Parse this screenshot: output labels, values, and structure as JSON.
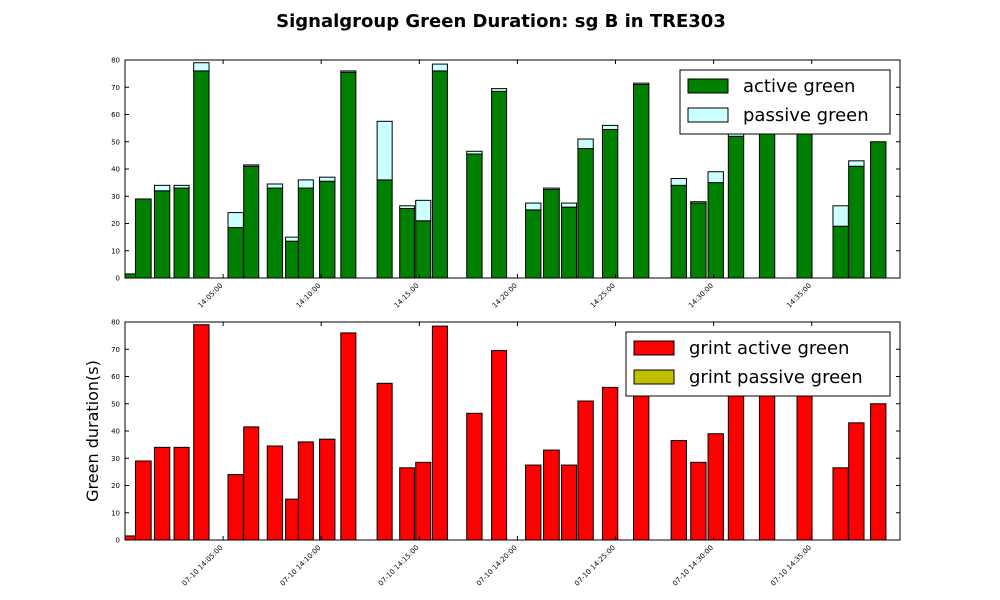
{
  "figure_title": "Signalgroup Green Duration: sg B in TRE303",
  "chart_data": [
    {
      "type": "bar",
      "stacked": true,
      "title": "",
      "xlabel": "",
      "ylabel": "",
      "ylim": [
        0,
        80
      ],
      "yticks": [
        0,
        10,
        20,
        30,
        40,
        50,
        60,
        70,
        80
      ],
      "xlim": [
        "14:00:00",
        "14:39:30"
      ],
      "xtick_values": [
        "14:05:00",
        "14:10:00",
        "14:15:00",
        "14:20:00",
        "14:25:00",
        "14:30:00",
        "14:35:00"
      ],
      "xtick_labels": [
        "14:05:00",
        "14:10:00",
        "14:15:00",
        "14:20:00",
        "14:25:00",
        "14:30:00",
        "14:35:00"
      ],
      "legend_position": "top-right",
      "grid": false,
      "bars": [
        {
          "start": "14:00:00",
          "end": "14:00:40",
          "active": 1.5,
          "passive": 0
        },
        {
          "start": "14:00:32",
          "end": "14:01:20",
          "active": 29,
          "passive": 0
        },
        {
          "start": "14:01:30",
          "end": "14:02:17",
          "active": 32,
          "passive": 2
        },
        {
          "start": "14:02:30",
          "end": "14:03:16",
          "active": 33,
          "passive": 1
        },
        {
          "start": "14:03:30",
          "end": "14:04:17",
          "active": 76,
          "passive": 3
        },
        {
          "start": "14:05:15",
          "end": "14:06:02",
          "active": 18.5,
          "passive": 5.5
        },
        {
          "start": "14:06:03",
          "end": "14:06:49",
          "active": 41,
          "passive": 0.5
        },
        {
          "start": "14:07:15",
          "end": "14:08:02",
          "active": 33,
          "passive": 1.5
        },
        {
          "start": "14:08:11",
          "end": "14:08:51",
          "active": 13.5,
          "passive": 1.5
        },
        {
          "start": "14:08:50",
          "end": "14:09:36",
          "active": 33,
          "passive": 3
        },
        {
          "start": "14:09:55",
          "end": "14:10:42",
          "active": 35.5,
          "passive": 1.5
        },
        {
          "start": "14:11:00",
          "end": "14:11:46",
          "active": 75.5,
          "passive": 0.5
        },
        {
          "start": "14:12:51",
          "end": "14:13:37",
          "active": 36,
          "passive": 21.5
        },
        {
          "start": "14:14:00",
          "end": "14:14:45",
          "active": 25.5,
          "passive": 1
        },
        {
          "start": "14:14:49",
          "end": "14:15:35",
          "active": 21,
          "passive": 7.5
        },
        {
          "start": "14:15:40",
          "end": "14:16:26",
          "active": 76,
          "passive": 2.5
        },
        {
          "start": "14:17:25",
          "end": "14:18:12",
          "active": 45.5,
          "passive": 1
        },
        {
          "start": "14:18:41",
          "end": "14:19:27",
          "active": 68.5,
          "passive": 1
        },
        {
          "start": "14:20:25",
          "end": "14:21:12",
          "active": 25,
          "passive": 2.5
        },
        {
          "start": "14:21:20",
          "end": "14:22:08",
          "active": 32.5,
          "passive": 0.5
        },
        {
          "start": "14:22:15",
          "end": "14:23:01",
          "active": 26,
          "passive": 1.5
        },
        {
          "start": "14:23:05",
          "end": "14:23:52",
          "active": 47.5,
          "passive": 3.5
        },
        {
          "start": "14:24:20",
          "end": "14:25:07",
          "active": 54.5,
          "passive": 1.5
        },
        {
          "start": "14:25:55",
          "end": "14:26:42",
          "active": 71,
          "passive": 0.5
        },
        {
          "start": "14:27:50",
          "end": "14:28:37",
          "active": 34,
          "passive": 2.5
        },
        {
          "start": "14:28:50",
          "end": "14:29:37",
          "active": 27.5,
          "passive": 0.5
        },
        {
          "start": "14:29:43",
          "end": "14:30:30",
          "active": 35,
          "passive": 4
        },
        {
          "start": "14:30:45",
          "end": "14:31:32",
          "active": 52,
          "passive": 1.5
        },
        {
          "start": "14:32:20",
          "end": "14:33:07",
          "active": 53,
          "passive": 0
        },
        {
          "start": "14:34:15",
          "end": "14:35:01",
          "active": 53,
          "passive": 0
        },
        {
          "start": "14:36:05",
          "end": "14:36:52",
          "active": 19,
          "passive": 7.5
        },
        {
          "start": "14:36:53",
          "end": "14:37:40",
          "active": 41,
          "passive": 2
        },
        {
          "start": "14:38:00",
          "end": "14:38:47",
          "active": 50,
          "passive": 0
        }
      ],
      "series": [
        {
          "name": "active green",
          "color": "#008000",
          "field": "active"
        },
        {
          "name": "passive green",
          "color": "#ccffff",
          "field": "passive"
        }
      ]
    },
    {
      "type": "bar",
      "stacked": true,
      "title": "",
      "xlabel": "",
      "ylabel": "Green duration(s)",
      "ylim": [
        0,
        80
      ],
      "yticks": [
        0,
        10,
        20,
        30,
        40,
        50,
        60,
        70,
        80
      ],
      "xlim": [
        "14:00:00",
        "14:39:30"
      ],
      "xtick_values": [
        "14:05:00",
        "14:10:00",
        "14:15:00",
        "14:20:00",
        "14:25:00",
        "14:30:00",
        "14:35:00"
      ],
      "xtick_labels": [
        "07-10 14:05:00",
        "07-10 14:10:00",
        "07-10 14:15:00",
        "07-10 14:20:00",
        "07-10 14:25:00",
        "07-10 14:30:00",
        "07-10 14:35:00"
      ],
      "legend_position": "top-right",
      "grid": false,
      "bars": [
        {
          "start": "14:00:00",
          "end": "14:00:40",
          "active": 1.5,
          "passive": 0
        },
        {
          "start": "14:00:32",
          "end": "14:01:20",
          "active": 29,
          "passive": 0
        },
        {
          "start": "14:01:30",
          "end": "14:02:17",
          "active": 34,
          "passive": 0
        },
        {
          "start": "14:02:30",
          "end": "14:03:16",
          "active": 34,
          "passive": 0
        },
        {
          "start": "14:03:30",
          "end": "14:04:17",
          "active": 79,
          "passive": 0
        },
        {
          "start": "14:05:15",
          "end": "14:06:02",
          "active": 24,
          "passive": 0
        },
        {
          "start": "14:06:03",
          "end": "14:06:49",
          "active": 41.5,
          "passive": 0
        },
        {
          "start": "14:07:15",
          "end": "14:08:02",
          "active": 34.5,
          "passive": 0
        },
        {
          "start": "14:08:11",
          "end": "14:08:51",
          "active": 15,
          "passive": 0
        },
        {
          "start": "14:08:50",
          "end": "14:09:36",
          "active": 36,
          "passive": 0
        },
        {
          "start": "14:09:55",
          "end": "14:10:42",
          "active": 37,
          "passive": 0
        },
        {
          "start": "14:11:00",
          "end": "14:11:46",
          "active": 76,
          "passive": 0
        },
        {
          "start": "14:12:51",
          "end": "14:13:37",
          "active": 57.5,
          "passive": 0
        },
        {
          "start": "14:14:00",
          "end": "14:14:45",
          "active": 26.5,
          "passive": 0
        },
        {
          "start": "14:14:49",
          "end": "14:15:35",
          "active": 28.5,
          "passive": 0
        },
        {
          "start": "14:15:40",
          "end": "14:16:26",
          "active": 78.5,
          "passive": 0
        },
        {
          "start": "14:17:25",
          "end": "14:18:12",
          "active": 46.5,
          "passive": 0
        },
        {
          "start": "14:18:41",
          "end": "14:19:27",
          "active": 69.5,
          "passive": 0
        },
        {
          "start": "14:20:25",
          "end": "14:21:12",
          "active": 27.5,
          "passive": 0
        },
        {
          "start": "14:21:20",
          "end": "14:22:08",
          "active": 33,
          "passive": 0
        },
        {
          "start": "14:22:15",
          "end": "14:23:01",
          "active": 27.5,
          "passive": 0
        },
        {
          "start": "14:23:05",
          "end": "14:23:52",
          "active": 51,
          "passive": 0
        },
        {
          "start": "14:24:20",
          "end": "14:25:07",
          "active": 56,
          "passive": 0
        },
        {
          "start": "14:25:55",
          "end": "14:26:42",
          "active": 71.5,
          "passive": 0
        },
        {
          "start": "14:27:50",
          "end": "14:28:37",
          "active": 36.5,
          "passive": 0
        },
        {
          "start": "14:28:50",
          "end": "14:29:37",
          "active": 28.5,
          "passive": 0
        },
        {
          "start": "14:29:43",
          "end": "14:30:30",
          "active": 39,
          "passive": 0
        },
        {
          "start": "14:30:45",
          "end": "14:31:32",
          "active": 53.5,
          "passive": 0
        },
        {
          "start": "14:32:20",
          "end": "14:33:07",
          "active": 53,
          "passive": 0
        },
        {
          "start": "14:34:15",
          "end": "14:35:01",
          "active": 53,
          "passive": 0
        },
        {
          "start": "14:36:05",
          "end": "14:36:52",
          "active": 26.5,
          "passive": 0
        },
        {
          "start": "14:36:53",
          "end": "14:37:40",
          "active": 43,
          "passive": 0
        },
        {
          "start": "14:38:00",
          "end": "14:38:47",
          "active": 50,
          "passive": 0
        }
      ],
      "series": [
        {
          "name": "grint active green",
          "color": "#ff0000",
          "field": "active"
        },
        {
          "name": "grint passive green",
          "color": "#bfbf00",
          "field": "passive"
        }
      ]
    }
  ]
}
